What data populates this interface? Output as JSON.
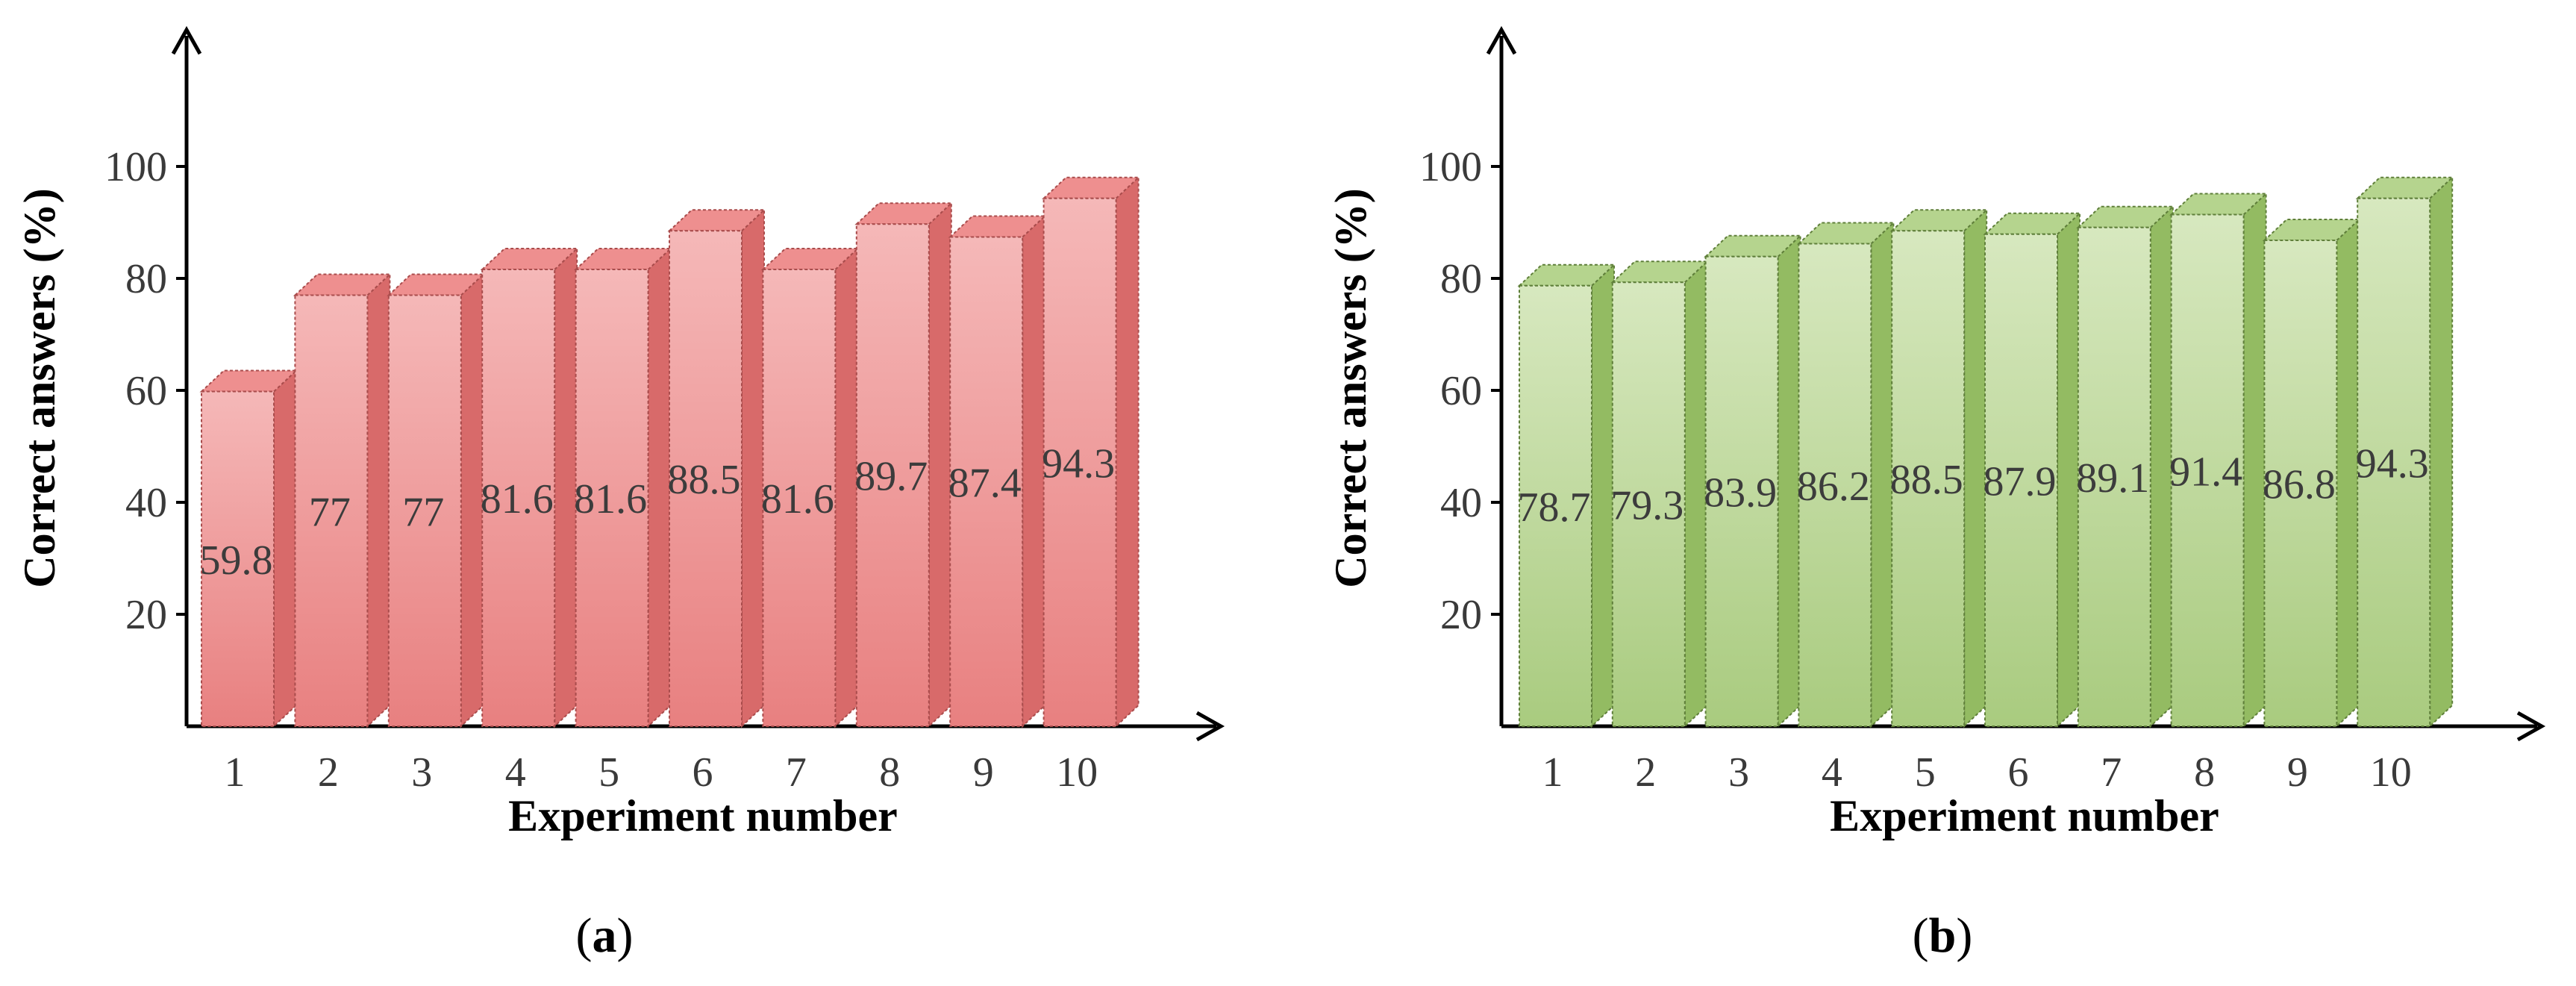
{
  "chart_data": [
    {
      "type": "bar",
      "panel_label": "a",
      "categories": [
        "1",
        "2",
        "3",
        "4",
        "5",
        "6",
        "7",
        "8",
        "9",
        "10"
      ],
      "values": [
        59.8,
        77,
        77,
        81.6,
        81.6,
        88.5,
        81.6,
        89.7,
        87.4,
        94.3
      ],
      "data_labels": [
        "59.8",
        "77",
        "77",
        "81.6",
        "81.6",
        "88.5",
        "81.6",
        "89.7",
        "87.4",
        "94.3"
      ],
      "xlabel": "Experiment number",
      "ylabel": "Correct answers (%)",
      "yticks": [
        "20",
        "40",
        "60",
        "80",
        "100"
      ],
      "ylim": [
        0,
        100
      ],
      "colors": {
        "front_top": "#f5b8b8",
        "front_bottom": "#e88080",
        "side": "#d86a6a",
        "top": "#ee8f8f",
        "edge": "#a94c4c"
      }
    },
    {
      "type": "bar",
      "panel_label": "b",
      "categories": [
        "1",
        "2",
        "3",
        "4",
        "5",
        "6",
        "7",
        "8",
        "9",
        "10"
      ],
      "values": [
        78.7,
        79.3,
        83.9,
        86.2,
        88.5,
        87.9,
        89.1,
        91.4,
        86.8,
        94.3
      ],
      "data_labels": [
        "78.7",
        "79.3",
        "83.9",
        "86.2",
        "88.5",
        "87.9",
        "89.1",
        "91.4",
        "86.8",
        "94.3"
      ],
      "xlabel": "Experiment number",
      "ylabel": "Correct answers (%)",
      "yticks": [
        "20",
        "40",
        "60",
        "80",
        "100"
      ],
      "ylim": [
        0,
        100
      ],
      "colors": {
        "front_top": "#d7e8bf",
        "front_bottom": "#a9cb7f",
        "side": "#93bb62",
        "top": "#b5d48e",
        "edge": "#5f7f3a"
      }
    }
  ]
}
